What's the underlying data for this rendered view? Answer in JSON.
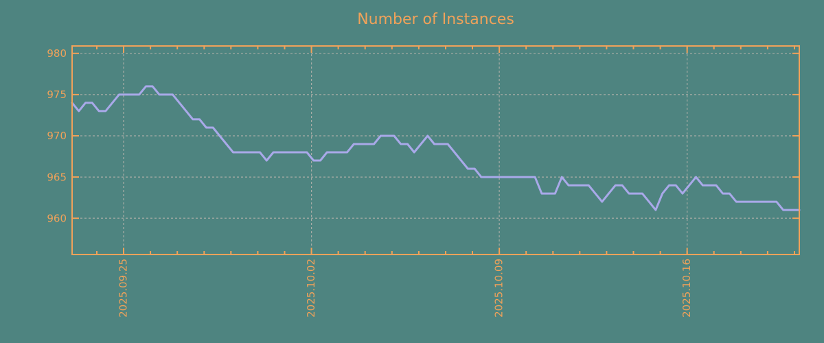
{
  "chart": {
    "title": "Number of Instances",
    "colors": {
      "background": "#4E8480",
      "accent_orange": "#F0A25A",
      "series_line": "#A9A9E9",
      "gridline": "#A8ACA6"
    }
  },
  "chart_data": {
    "type": "line",
    "title": "Number of Instances",
    "xlabel": "",
    "ylabel": "",
    "grid": true,
    "legend_position": "none",
    "ylim": [
      955.6,
      980.9
    ],
    "y_ticks": [
      960,
      965,
      970,
      975,
      980
    ],
    "x_days_total": 27.1,
    "x_first_minor_tick_day": 0.92,
    "x_minor_tick_step_days": 1,
    "x_major_ticks": [
      {
        "day": 1.92,
        "label": "2025.09.25"
      },
      {
        "day": 8.92,
        "label": "2025.10.02"
      },
      {
        "day": 15.92,
        "label": "2025.10.09"
      },
      {
        "day": 22.92,
        "label": "2025.10.16"
      }
    ],
    "series": [
      {
        "name": "instances",
        "step_days": 0.25,
        "values": [
          974,
          973,
          974,
          974,
          973,
          973,
          974,
          975,
          975,
          975,
          975,
          976,
          976,
          975,
          975,
          975,
          974,
          973,
          972,
          972,
          971,
          971,
          970,
          969,
          968,
          968,
          968,
          968,
          968,
          967,
          968,
          968,
          968,
          968,
          968,
          968,
          967,
          967,
          968,
          968,
          968,
          968,
          969,
          969,
          969,
          969,
          970,
          970,
          970,
          969,
          969,
          968,
          969,
          970,
          969,
          969,
          969,
          968,
          967,
          966,
          966,
          965,
          965,
          965,
          965,
          965,
          965,
          965,
          965,
          965,
          963,
          963,
          963,
          965,
          964,
          964,
          964,
          964,
          963,
          962,
          963,
          964,
          964,
          963,
          963,
          963,
          962,
          961,
          963,
          964,
          964,
          963,
          964,
          965,
          964,
          964,
          964,
          963,
          963,
          962,
          962,
          962,
          962,
          962,
          962,
          962,
          961,
          961,
          961
        ]
      }
    ]
  }
}
